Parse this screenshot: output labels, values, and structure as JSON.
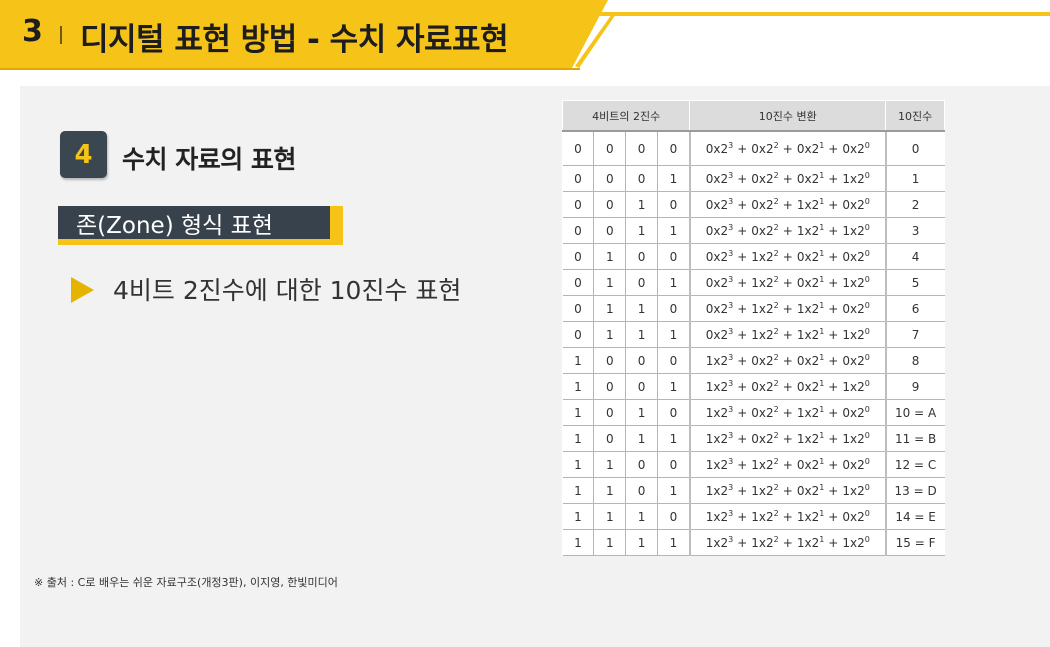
{
  "header": {
    "number": "3",
    "title": "디지털 표현 방법 - 수치 자료표현",
    "accent_color": "#f6c318"
  },
  "section": {
    "badge": "4",
    "title": "수치 자료의 표현",
    "subheading": "존(Zone) 형식 표현",
    "bullet_icon": "triangle-right-icon",
    "bullet_text": "4비트 2진수에 대한 10진수 표현"
  },
  "source": "※ 출처 : C로 배우는 쉬운 자료구조(개정3판), 이지영, 한빛미디어",
  "table": {
    "headers": [
      "4비트의 2진수",
      "10진수 변환",
      "10진수"
    ],
    "mult": "x",
    "plus": "+",
    "rows": [
      {
        "bits": [
          "0",
          "0",
          "0",
          "0"
        ],
        "dec": "0"
      },
      {
        "bits": [
          "0",
          "0",
          "0",
          "1"
        ],
        "dec": "1"
      },
      {
        "bits": [
          "0",
          "0",
          "1",
          "0"
        ],
        "dec": "2"
      },
      {
        "bits": [
          "0",
          "0",
          "1",
          "1"
        ],
        "dec": "3"
      },
      {
        "bits": [
          "0",
          "1",
          "0",
          "0"
        ],
        "dec": "4"
      },
      {
        "bits": [
          "0",
          "1",
          "0",
          "1"
        ],
        "dec": "5"
      },
      {
        "bits": [
          "0",
          "1",
          "1",
          "0"
        ],
        "dec": "6"
      },
      {
        "bits": [
          "0",
          "1",
          "1",
          "1"
        ],
        "dec": "7"
      },
      {
        "bits": [
          "1",
          "0",
          "0",
          "0"
        ],
        "dec": "8"
      },
      {
        "bits": [
          "1",
          "0",
          "0",
          "1"
        ],
        "dec": "9"
      },
      {
        "bits": [
          "1",
          "0",
          "1",
          "0"
        ],
        "dec": "10 = A"
      },
      {
        "bits": [
          "1",
          "0",
          "1",
          "1"
        ],
        "dec": "11 = B"
      },
      {
        "bits": [
          "1",
          "1",
          "0",
          "0"
        ],
        "dec": "12 = C"
      },
      {
        "bits": [
          "1",
          "1",
          "0",
          "1"
        ],
        "dec": "13 = D"
      },
      {
        "bits": [
          "1",
          "1",
          "1",
          "0"
        ],
        "dec": "14 = E"
      },
      {
        "bits": [
          "1",
          "1",
          "1",
          "1"
        ],
        "dec": "15 = F"
      }
    ]
  }
}
